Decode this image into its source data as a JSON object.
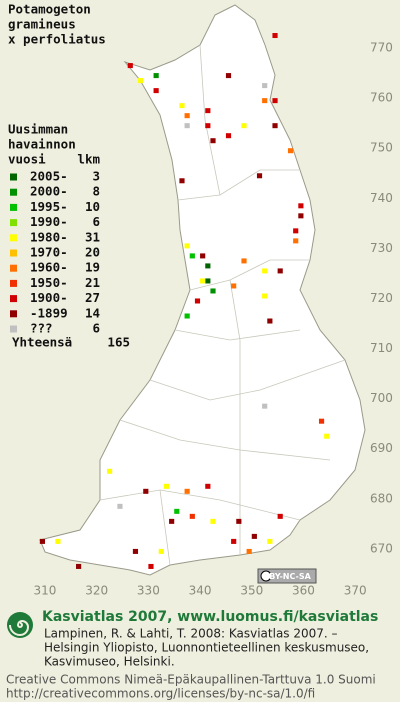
{
  "header": {
    "title_lines": [
      "Potamogeton",
      "gramineus",
      "x perfoliatus"
    ]
  },
  "legend": {
    "heading_lines": [
      "Uusimman",
      "havainnon",
      "vuosi"
    ],
    "count_heading": "lkm",
    "rows": [
      {
        "label": "2005-",
        "count": 3,
        "color": "#006400"
      },
      {
        "label": "2000-",
        "count": 8,
        "color": "#009000"
      },
      {
        "label": "1995-",
        "count": 10,
        "color": "#00c000"
      },
      {
        "label": "1990-",
        "count": 6,
        "color": "#80e000"
      },
      {
        "label": "1980-",
        "count": 31,
        "color": "#ffff00"
      },
      {
        "label": "1970-",
        "count": 20,
        "color": "#ffc000"
      },
      {
        "label": "1960-",
        "count": 19,
        "color": "#ff7000"
      },
      {
        "label": "1950-",
        "count": 21,
        "color": "#f03000"
      },
      {
        "label": "1900-",
        "count": 27,
        "color": "#d00000"
      },
      {
        "label": "-1899",
        "count": 14,
        "color": "#900000"
      },
      {
        "label": "???",
        "count": 6,
        "color": "#c0c0c0"
      }
    ],
    "total_label": "Yhteensä",
    "total": 165
  },
  "map": {
    "xlim": [
      305,
      375
    ],
    "ylim": [
      660,
      775
    ],
    "xticks": [
      310,
      320,
      330,
      340,
      350,
      360,
      370
    ],
    "yticks": [
      670,
      680,
      690,
      700,
      710,
      720,
      730,
      740,
      750,
      760,
      770
    ],
    "cells": [
      [
        354,
        772,
        8
      ],
      [
        326,
        766,
        8
      ],
      [
        331,
        764,
        1
      ],
      [
        328,
        763,
        4
      ],
      [
        331,
        761,
        8
      ],
      [
        345,
        764,
        9
      ],
      [
        336,
        758,
        4
      ],
      [
        341,
        757,
        8
      ],
      [
        337,
        756,
        6
      ],
      [
        337,
        754,
        10
      ],
      [
        341,
        754,
        8
      ],
      [
        342,
        751,
        9
      ],
      [
        345,
        752,
        8
      ],
      [
        348,
        754,
        4
      ],
      [
        352,
        762,
        10
      ],
      [
        352,
        759,
        6
      ],
      [
        354,
        759,
        8
      ],
      [
        354,
        754,
        9
      ],
      [
        357,
        749,
        6
      ],
      [
        351,
        744,
        9
      ],
      [
        336,
        743,
        9
      ],
      [
        359,
        738,
        8
      ],
      [
        358,
        733,
        8
      ],
      [
        358,
        731,
        6
      ],
      [
        359,
        736,
        9
      ],
      [
        337,
        730,
        4
      ],
      [
        338,
        728,
        2
      ],
      [
        340,
        728,
        9
      ],
      [
        341,
        726,
        0
      ],
      [
        341,
        723,
        0
      ],
      [
        342,
        721,
        1
      ],
      [
        340,
        723,
        4
      ],
      [
        346,
        722,
        6
      ],
      [
        339,
        719,
        8
      ],
      [
        337,
        716,
        2
      ],
      [
        352,
        720,
        4
      ],
      [
        353,
        715,
        9
      ],
      [
        348,
        727,
        6
      ],
      [
        355,
        725,
        9
      ],
      [
        352,
        725,
        4
      ],
      [
        352,
        698,
        10
      ],
      [
        363,
        695,
        7
      ],
      [
        364,
        692,
        4
      ],
      [
        322,
        685,
        4
      ],
      [
        329,
        681,
        9
      ],
      [
        333,
        682,
        4
      ],
      [
        324,
        678,
        10
      ],
      [
        337,
        681,
        6
      ],
      [
        341,
        682,
        8
      ],
      [
        335,
        677,
        2
      ],
      [
        334,
        675,
        9
      ],
      [
        338,
        676,
        7
      ],
      [
        342,
        675,
        4
      ],
      [
        347,
        675,
        9
      ],
      [
        350,
        672,
        9
      ],
      [
        353,
        671,
        4
      ],
      [
        355,
        676,
        8
      ],
      [
        312,
        671,
        4
      ],
      [
        309,
        671,
        9
      ],
      [
        316,
        666,
        9
      ],
      [
        330,
        666,
        8
      ],
      [
        332,
        669,
        4
      ],
      [
        327,
        669,
        9
      ],
      [
        346,
        671,
        8
      ],
      [
        349,
        669,
        6
      ]
    ]
  },
  "license_badge": "BY-NC-SA",
  "footer": {
    "brand": "Kasviatlas 2007, www.luomus.fi/kasviatlas",
    "citation_lines": [
      "Lampinen, R. & Lahti, T. 2008: Kasviatlas 2007. –",
      "Helsingin Yliopisto, Luonnontieteellinen keskusmuseo,",
      "Kasvimuseo, Helsinki."
    ],
    "license_lines": [
      "Creative Commons Nimeä-Epäkaupallinen-Tarttuva 1.0 Suomi",
      "http://creativecommons.org/licenses/by-nc-sa/1.0/fi"
    ]
  }
}
